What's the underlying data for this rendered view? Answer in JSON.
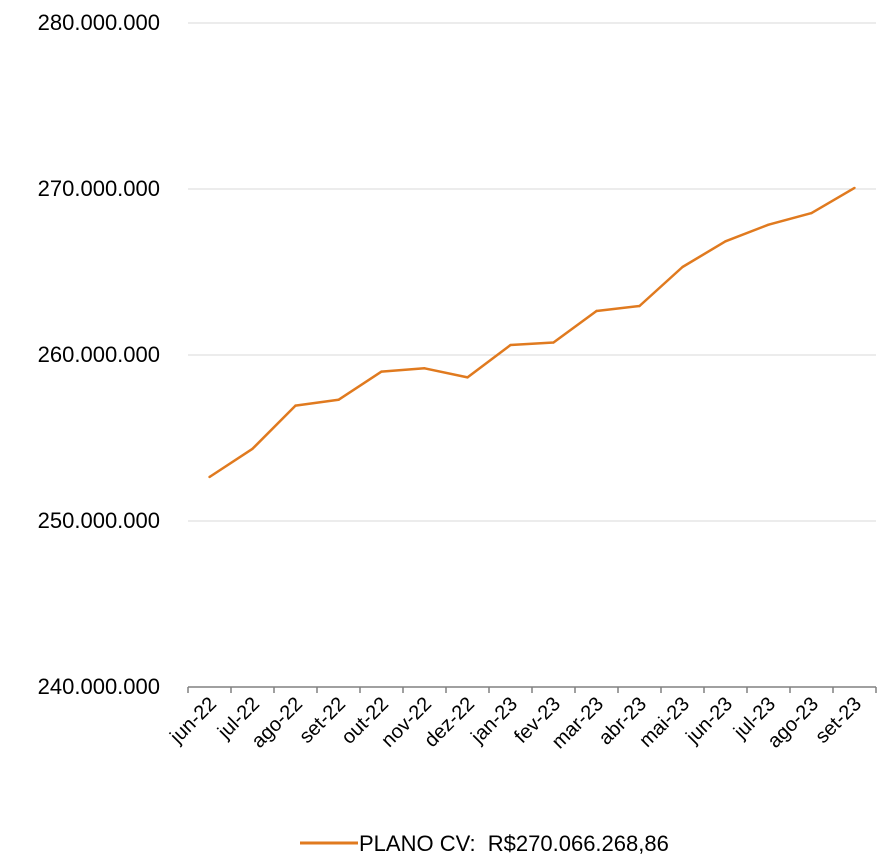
{
  "chart_data": {
    "type": "line",
    "title": "",
    "xlabel": "",
    "ylabel": "",
    "categories": [
      "jun-22",
      "jul-22",
      "ago-22",
      "set-22",
      "out-22",
      "nov-22",
      "dez-22",
      "jan-23",
      "fev-23",
      "mar-23",
      "abr-23",
      "mai-23",
      "jun-23",
      "jul-23",
      "ago-23",
      "set-23"
    ],
    "series": [
      {
        "name": "PLANO CV:  R$270.066.268,86",
        "color": "#E07A1F",
        "values": [
          252650000,
          254350000,
          256950000,
          257300000,
          259000000,
          259200000,
          258650000,
          260600000,
          260750000,
          262650000,
          262950000,
          265300000,
          266850000,
          267850000,
          268550000,
          270066268.86
        ]
      }
    ],
    "ylim": [
      240000000,
      280000000
    ],
    "yticks": [
      240000000,
      250000000,
      260000000,
      270000000,
      280000000
    ],
    "ytick_labels": [
      "240.000.000",
      "250.000.000",
      "260.000.000",
      "270.000.000",
      "280.000.000"
    ],
    "grid": true,
    "legend_position": "bottom"
  }
}
